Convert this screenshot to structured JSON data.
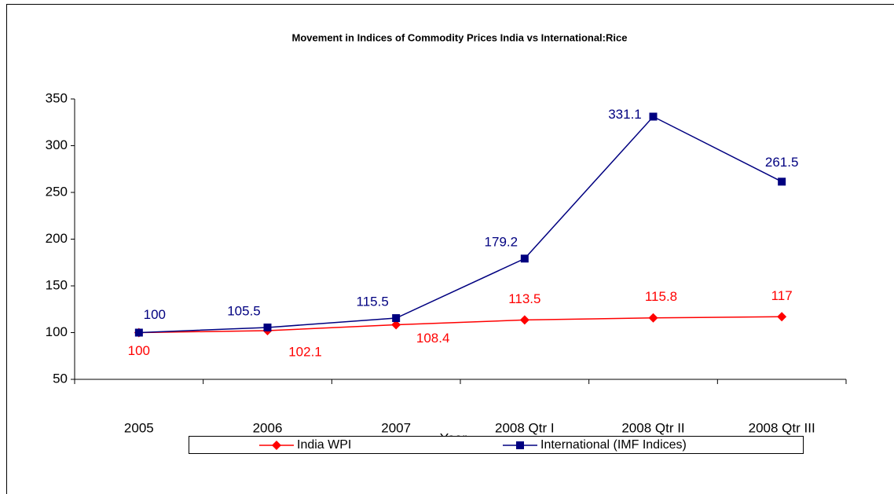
{
  "chart_data": {
    "type": "line",
    "title": "Movement in Indices of Commodity Prices India vs International:Rice",
    "x_label": "Year",
    "categories": [
      "2005",
      "2006",
      "2007",
      "2008 Qtr I",
      "2008 Qtr II",
      "2008 Qtr III"
    ],
    "series": [
      {
        "name": "India WPI",
        "color": "#ff0000",
        "marker": "diamond",
        "values": [
          100,
          102.1,
          108.4,
          113.5,
          115.8,
          117
        ]
      },
      {
        "name": "International (IMF Indices)",
        "color": "#000080",
        "marker": "square",
        "values": [
          100,
          105.5,
          115.5,
          179.2,
          331.1,
          261.5
        ]
      }
    ],
    "ylim": [
      50,
      350
    ],
    "yticks": [
      50,
      100,
      150,
      200,
      250,
      300,
      350
    ],
    "grid": false,
    "legend": "bottom"
  }
}
